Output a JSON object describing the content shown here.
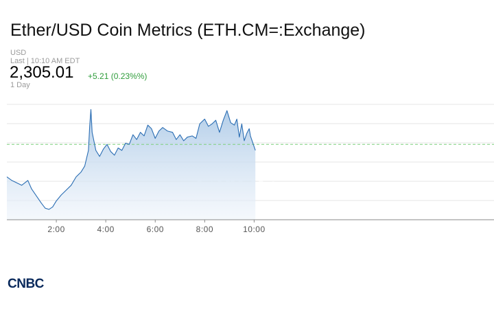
{
  "header": {
    "title": "Ether/USD Coin Metrics (ETH.CM=:Exchange)",
    "currency": "USD",
    "last_updated": "Last | 10:10 AM EDT",
    "price": "2,305.01",
    "change": "+5.21 (0.23%%)",
    "period": "1 Day"
  },
  "brand": {
    "logo_text": "CNBC",
    "watermark_text": "CNBC"
  },
  "colors": {
    "line": "#2a6db3",
    "fill_top": "#aac8e6",
    "fill_bottom": "#eef4fb",
    "change_positive": "#2e9c3a",
    "reference_line": "#7ccf7c",
    "grid": "#e6e6e6"
  },
  "chart_data": {
    "type": "area",
    "x_unit": "time of day (hours, EDT)",
    "xlim": [
      0,
      19.7
    ],
    "ylim": [
      2242.4,
      2338.2
    ],
    "x_ticks": [
      {
        "value": 2,
        "label": "2:00"
      },
      {
        "value": 4,
        "label": "4:00"
      },
      {
        "value": 6,
        "label": "6:00"
      },
      {
        "value": 8,
        "label": "8:00"
      },
      {
        "value": 10,
        "label": "10:00"
      }
    ],
    "reference_line": {
      "value": 2305.01,
      "style": "dashed"
    },
    "grid": true,
    "series": [
      {
        "x": [
          0.0,
          0.2,
          0.4,
          0.6,
          0.85,
          1.0,
          1.2,
          1.4,
          1.55,
          1.7,
          1.85,
          2.0,
          2.2,
          2.4,
          2.6,
          2.8,
          3.0,
          3.15,
          3.3,
          3.35,
          3.4,
          3.45,
          3.6,
          3.75,
          3.9,
          4.05,
          4.2,
          4.35,
          4.5,
          4.65,
          4.8,
          4.95,
          5.1,
          5.25,
          5.4,
          5.55,
          5.7,
          5.85,
          6.0,
          6.15,
          6.3,
          6.5,
          6.7,
          6.85,
          7.0,
          7.15,
          7.3,
          7.5,
          7.65,
          7.8,
          8.0,
          8.15,
          8.3,
          8.45,
          8.6,
          8.75,
          8.9,
          9.05,
          9.2,
          9.3,
          9.4,
          9.5,
          9.6,
          9.7,
          9.8,
          9.85,
          9.9,
          10.0,
          10.05
        ],
        "y": [
          2278,
          2275,
          2273,
          2271,
          2275,
          2268,
          2262,
          2256,
          2252,
          2251,
          2253,
          2258,
          2263,
          2267,
          2271,
          2278,
          2282,
          2287,
          2300,
          2320,
          2334,
          2315,
          2300,
          2295,
          2301,
          2305,
          2299,
          2296,
          2302,
          2300,
          2306,
          2305,
          2313,
          2309,
          2315,
          2312,
          2321,
          2318,
          2310,
          2316,
          2319,
          2316,
          2315,
          2309,
          2313,
          2308,
          2311,
          2312,
          2310,
          2322,
          2326,
          2320,
          2322,
          2325,
          2315,
          2325,
          2333,
          2323,
          2321,
          2326,
          2311,
          2322,
          2308,
          2314,
          2318,
          2312,
          2309,
          2303,
          2300
        ]
      }
    ]
  }
}
